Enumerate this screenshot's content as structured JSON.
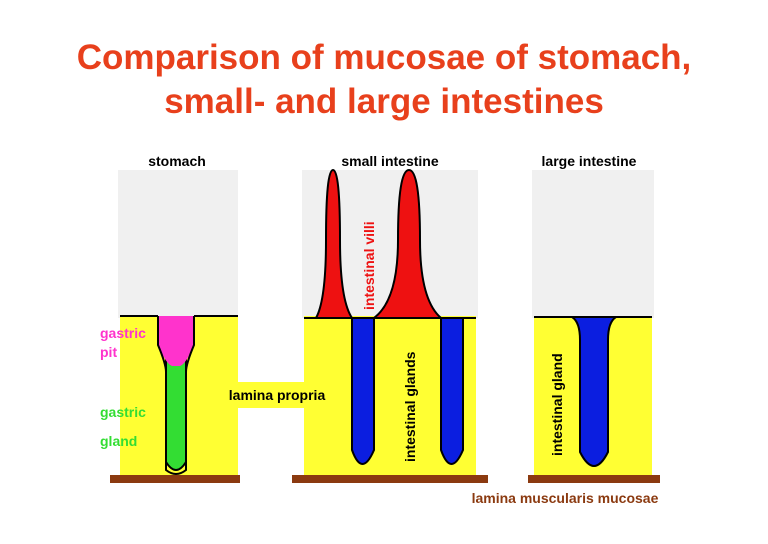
{
  "title": {
    "line1": "Comparison of mucosae of stomach,",
    "line2": "small- and large intestines"
  },
  "columns": {
    "stomach": "stomach",
    "small_intestine": "small intestine",
    "large_intestine": "large intestine"
  },
  "labels": {
    "gastric_pit_1": "gastric",
    "gastric_pit_2": "pit",
    "gastric_gland_1": "gastric",
    "gastric_gland_2": "gland",
    "lamina_propria": "lamina propria",
    "intestinal_villi": "intestinal villi",
    "intestinal_glands": "intestinal glands",
    "intestinal_gland": "intestinal gland",
    "lamina_muscularis": "lamina muscularis mucosae"
  },
  "colors": {
    "title": "#e8401c",
    "lamina_propria": "#ffff33",
    "gastric_pit": "#ff33cc",
    "gastric_gland": "#33dd33",
    "intestinal_gland": "#0b1ee0",
    "villi": "#ee1111",
    "muscularis": "#8b3a10",
    "shading": "#eeeeee"
  }
}
